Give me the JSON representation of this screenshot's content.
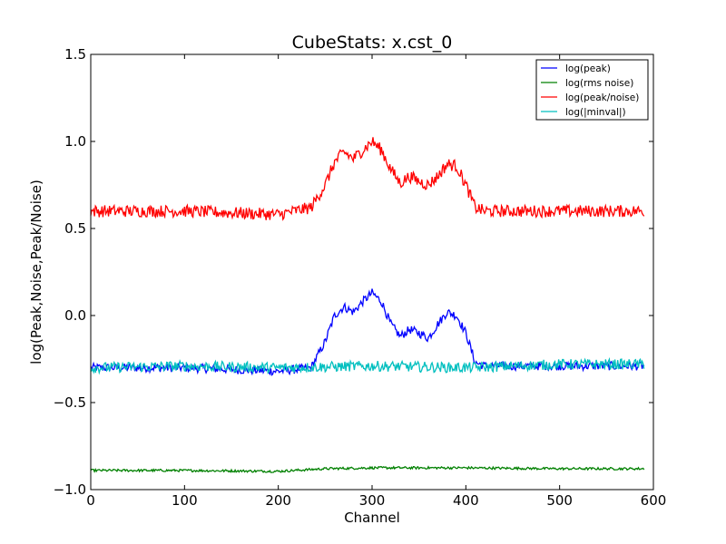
{
  "chart_data": {
    "type": "line",
    "title": "CubeStats: x.cst_0",
    "xlabel": "Channel",
    "ylabel": "log(Peak,Noise,Peak/Noise)",
    "xlim": [
      0,
      600
    ],
    "ylim": [
      -1.0,
      1.5
    ],
    "x_ticks": [
      0,
      100,
      200,
      300,
      400,
      500,
      600
    ],
    "y_ticks": [
      -1.0,
      -0.5,
      0.0,
      0.5,
      1.0,
      1.5
    ],
    "x_tick_labels": [
      "0",
      "100",
      "200",
      "300",
      "400",
      "500",
      "600"
    ],
    "y_tick_labels": [
      "−1.0",
      "−0.5",
      "0.0",
      "0.5",
      "1.0",
      "1.5"
    ],
    "grid": false,
    "legend_position": "top-right",
    "x_range": [
      0,
      590
    ],
    "series": [
      {
        "name": "log(peak)",
        "color": "#0000ff",
        "x": [
          0,
          100,
          200,
          235,
          250,
          260,
          270,
          280,
          290,
          300,
          310,
          320,
          330,
          340,
          350,
          360,
          370,
          380,
          390,
          400,
          410,
          420,
          500,
          590
        ],
        "y": [
          -0.3,
          -0.3,
          -0.32,
          -0.3,
          -0.15,
          0.0,
          0.05,
          0.02,
          0.08,
          0.13,
          0.08,
          -0.05,
          -0.12,
          -0.08,
          -0.1,
          -0.13,
          -0.05,
          0.02,
          0.0,
          -0.1,
          -0.27,
          -0.29,
          -0.29,
          -0.29
        ]
      },
      {
        "name": "log(rms noise)",
        "color": "#008000",
        "x": [
          0,
          100,
          200,
          250,
          300,
          350,
          400,
          500,
          590
        ],
        "y": [
          -0.89,
          -0.89,
          -0.895,
          -0.88,
          -0.875,
          -0.875,
          -0.875,
          -0.88,
          -0.88
        ]
      },
      {
        "name": "log(peak/noise)",
        "color": "#ff0000",
        "x": [
          0,
          100,
          200,
          235,
          250,
          260,
          270,
          280,
          290,
          300,
          310,
          320,
          330,
          340,
          350,
          360,
          370,
          380,
          390,
          400,
          410,
          420,
          500,
          590
        ],
        "y": [
          0.6,
          0.6,
          0.58,
          0.62,
          0.75,
          0.88,
          0.94,
          0.9,
          0.95,
          1.0,
          0.95,
          0.84,
          0.76,
          0.8,
          0.77,
          0.75,
          0.8,
          0.87,
          0.86,
          0.75,
          0.62,
          0.6,
          0.6,
          0.6
        ]
      },
      {
        "name": "log(|minval|)",
        "color": "#00bfbf",
        "x": [
          0,
          100,
          200,
          300,
          400,
          500,
          590
        ],
        "y": [
          -0.3,
          -0.29,
          -0.3,
          -0.29,
          -0.3,
          -0.28,
          -0.28
        ]
      }
    ]
  }
}
